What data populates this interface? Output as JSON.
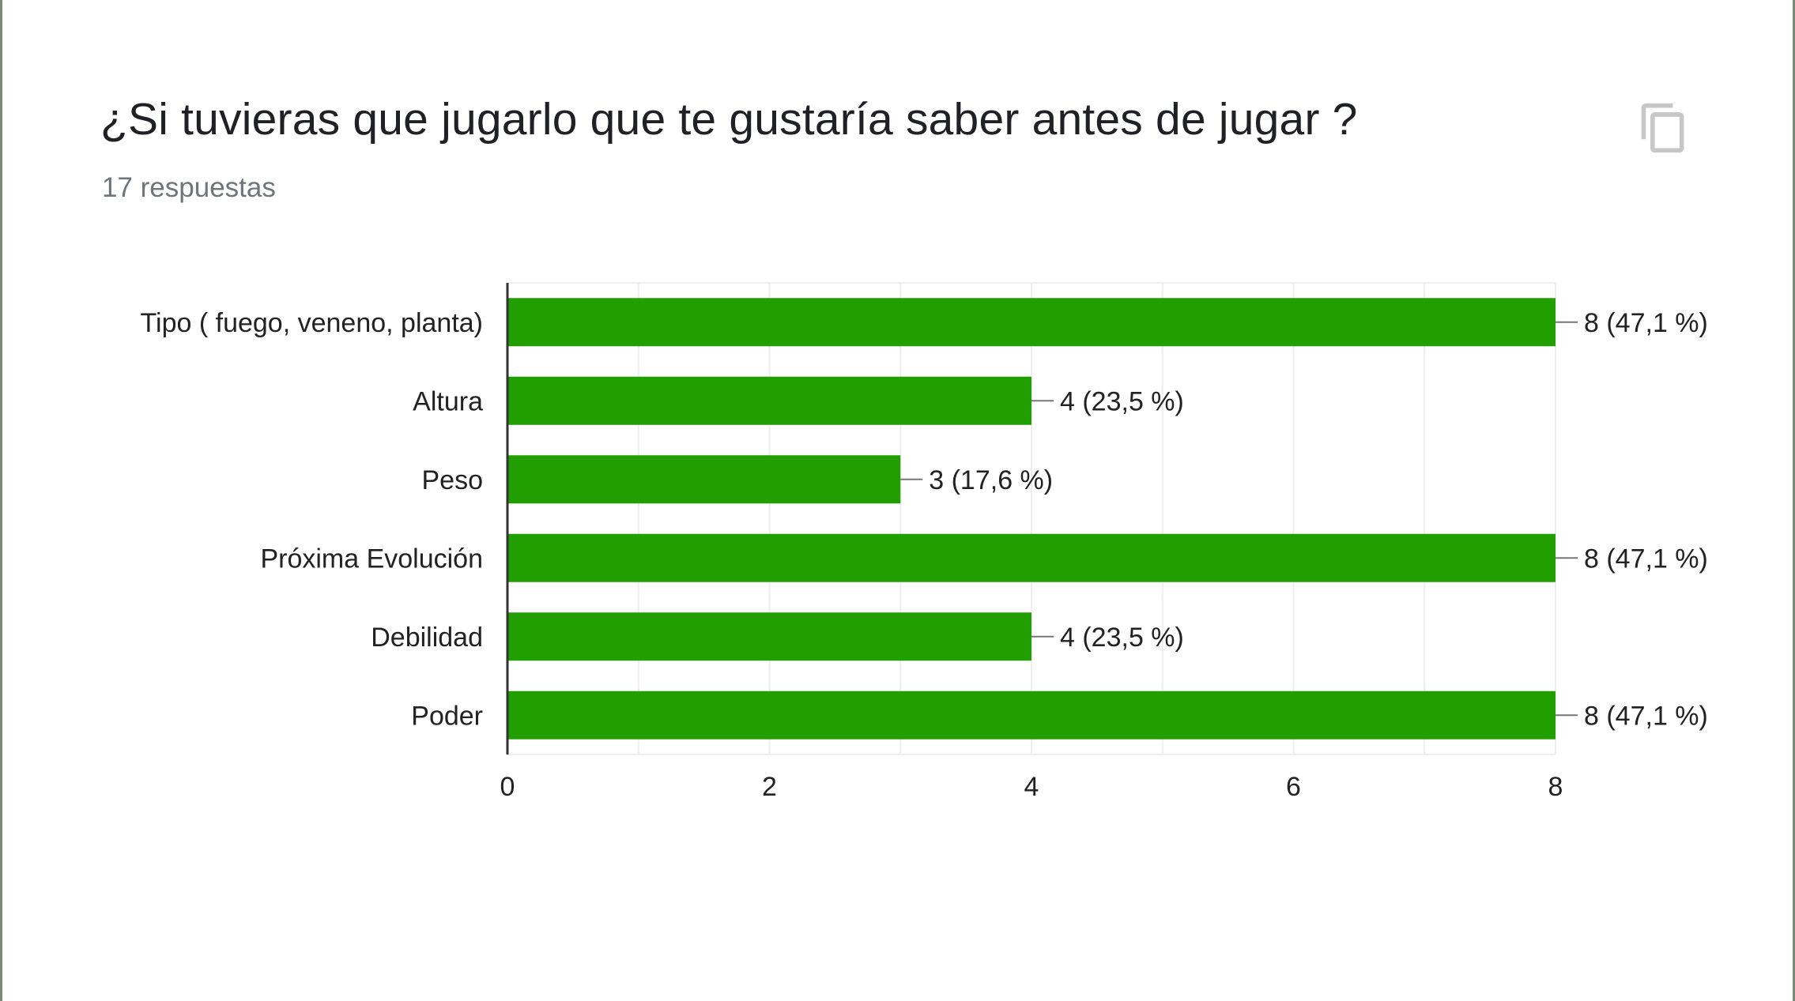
{
  "question": {
    "title": "¿Si tuvieras que jugarlo que te gustaría saber antes de jugar ?",
    "responses": "17 respuestas"
  },
  "icons": {
    "copy": "copy-icon"
  },
  "colors": {
    "bar": "#219E00",
    "grid": "#eeeeee",
    "axis": "#333333",
    "text": "#222222",
    "leader": "#777777"
  },
  "chart_data": {
    "type": "bar",
    "orientation": "horizontal",
    "categories": [
      "Tipo ( fuego, veneno, planta)",
      "Altura",
      "Peso",
      "Próxima Evolución",
      "Debilidad",
      "Poder"
    ],
    "values": [
      8,
      4,
      3,
      8,
      4,
      8
    ],
    "data_labels": [
      "8 (47,1 %)",
      "4 (23,5 %)",
      "3 (17,6 %)",
      "8 (47,1 %)",
      "4 (23,5 %)",
      "8 (47,1 %)"
    ],
    "xlim": [
      0,
      8
    ],
    "xticks": [
      "0",
      "2",
      "4",
      "6",
      "8"
    ],
    "grid": true,
    "minor_grid_step": 1
  }
}
